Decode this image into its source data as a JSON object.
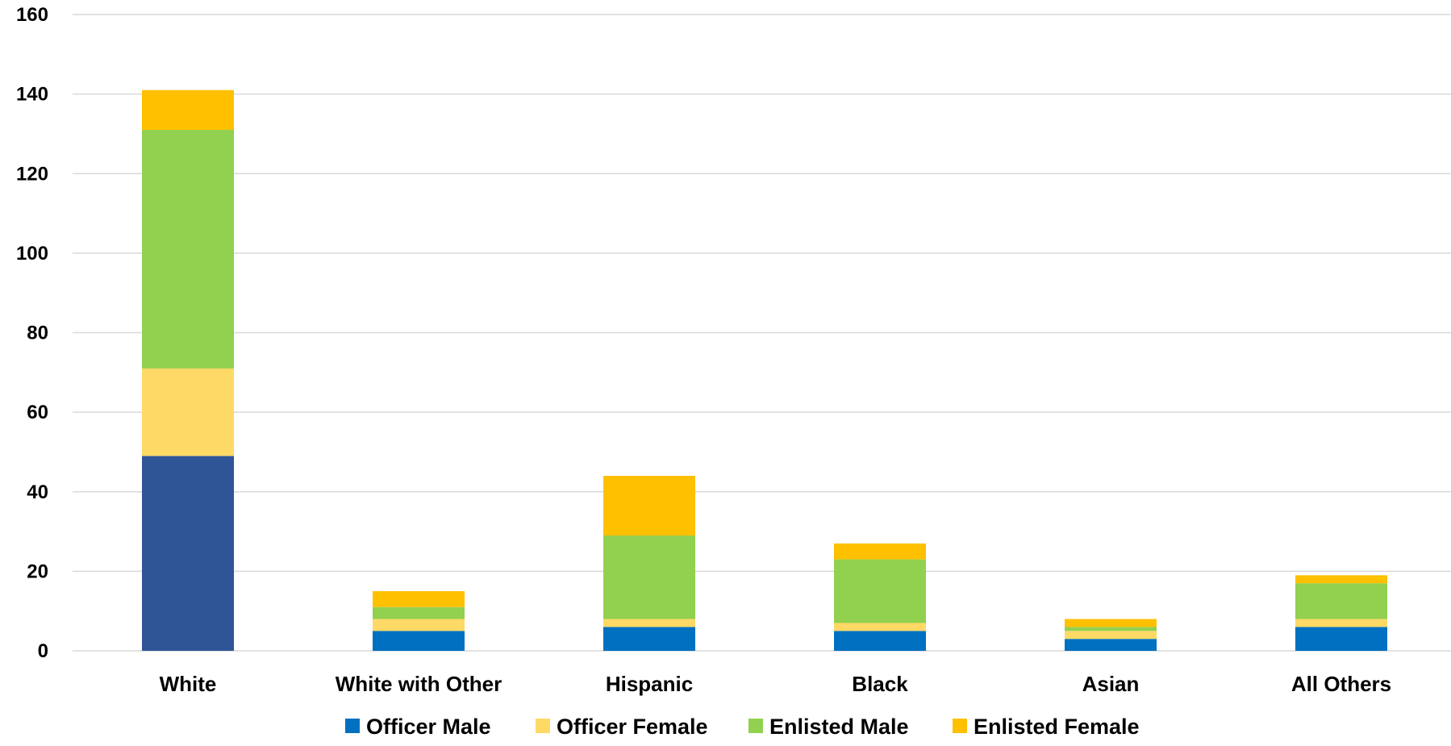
{
  "chart_data": {
    "type": "bar",
    "stacked": true,
    "title": "",
    "xlabel": "",
    "ylabel": "",
    "ylim": [
      0,
      160
    ],
    "yticks": [
      0,
      20,
      40,
      60,
      80,
      100,
      120,
      140,
      160
    ],
    "grid": true,
    "legend_position": "bottom",
    "categories": [
      "White",
      "White with Other",
      "Hispanic",
      "Black",
      "Asian",
      "All Others"
    ],
    "series": [
      {
        "name": "Officer Male",
        "color": "#0070c0",
        "values": [
          49,
          5,
          6,
          5,
          3,
          6
        ]
      },
      {
        "name": "Officer Female",
        "color": "#ffd966",
        "values": [
          22,
          3,
          2,
          2,
          2,
          2
        ]
      },
      {
        "name": "Enlisted Male",
        "color": "#92d050",
        "values": [
          60,
          3,
          21,
          16,
          1,
          9
        ]
      },
      {
        "name": "Enlisted Female",
        "color": "#ffc000",
        "values": [
          10,
          4,
          15,
          4,
          2,
          2
        ]
      }
    ],
    "highlight": {
      "category": "White",
      "series": "Officer Male",
      "color": "#2f5597"
    }
  }
}
